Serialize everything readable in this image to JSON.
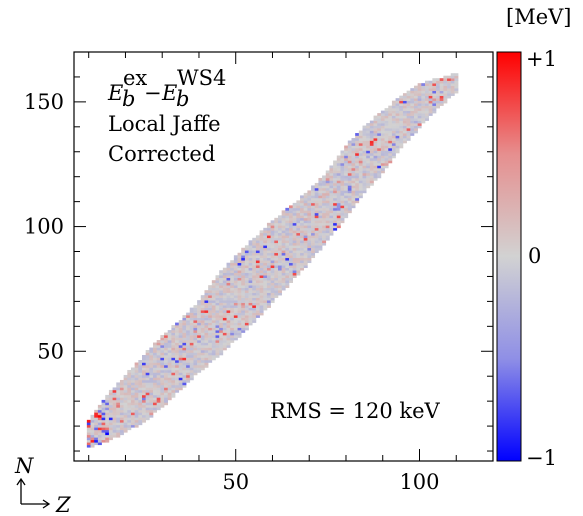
{
  "chart_data": {
    "type": "heatmap",
    "title": "",
    "xlabel": "Z",
    "ylabel": "N",
    "xlim": [
      6,
      120
    ],
    "ylim": [
      6,
      170
    ],
    "x_ticks": [
      50,
      100
    ],
    "y_ticks": [
      50,
      100,
      150
    ],
    "x_tick_labels": [
      "50",
      "100"
    ],
    "y_tick_labels": [
      "50",
      "100",
      "150"
    ],
    "colorbar": {
      "unit": "[MeV]",
      "range": [
        -1,
        1
      ],
      "tick_labels": [
        "+1",
        "0",
        "−1"
      ],
      "colors": {
        "low": "#0000ff",
        "mid": "#d2d2d2",
        "high": "#ff0000"
      }
    },
    "annotations": {
      "quantity_main": "E",
      "quantity_sub_1": "b",
      "quantity_sup_1": "ex",
      "minus": "−",
      "quantity_sub_2": "b",
      "quantity_sup_2": "WS4",
      "line2": "Local Jaffe",
      "line3": "Corrected",
      "rms": "RMS = 120 keV"
    },
    "region": {
      "description_points_Z_Nmin_Nmax": [
        [
          10,
          12,
          22
        ],
        [
          15,
          14,
          32
        ],
        [
          20,
          18,
          40
        ],
        [
          25,
          22,
          48
        ],
        [
          30,
          28,
          56
        ],
        [
          35,
          35,
          62
        ],
        [
          40,
          42,
          70
        ],
        [
          45,
          48,
          80
        ],
        [
          50,
          55,
          88
        ],
        [
          55,
          62,
          95
        ],
        [
          60,
          70,
          102
        ],
        [
          65,
          78,
          108
        ],
        [
          70,
          86,
          114
        ],
        [
          75,
          95,
          122
        ],
        [
          80,
          104,
          132
        ],
        [
          85,
          114,
          140
        ],
        [
          90,
          122,
          146
        ],
        [
          95,
          132,
          152
        ],
        [
          100,
          140,
          157
        ],
        [
          105,
          148,
          159
        ],
        [
          110,
          154,
          161
        ]
      ]
    }
  }
}
